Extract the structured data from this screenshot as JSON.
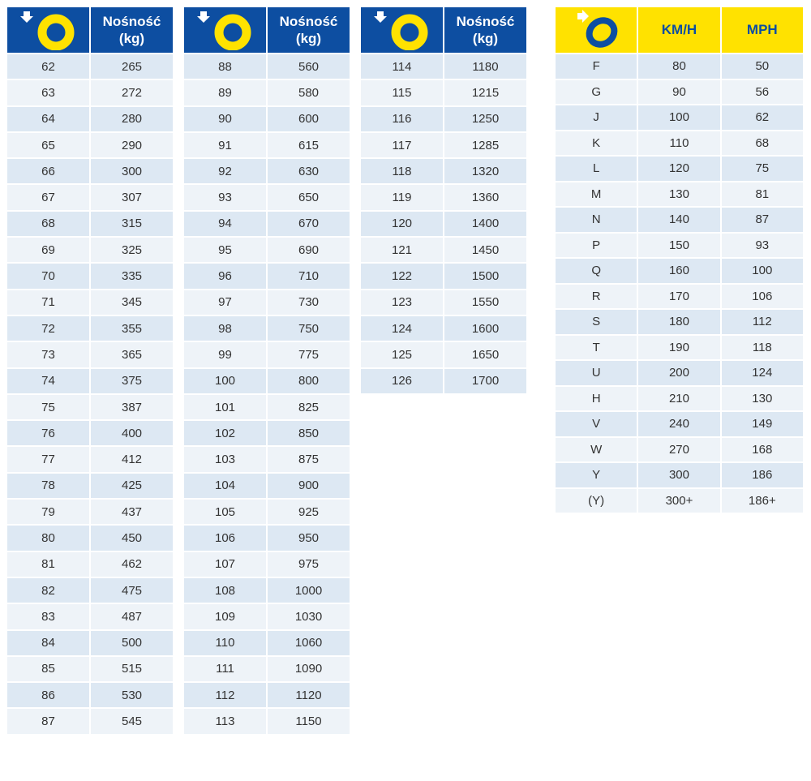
{
  "load_tables": [
    {
      "header": {
        "icon": "load-index-tyre-icon",
        "label_line1": "Nośność",
        "label_line2": "(kg)"
      },
      "rows": [
        [
          "62",
          "265"
        ],
        [
          "63",
          "272"
        ],
        [
          "64",
          "280"
        ],
        [
          "65",
          "290"
        ],
        [
          "66",
          "300"
        ],
        [
          "67",
          "307"
        ],
        [
          "68",
          "315"
        ],
        [
          "69",
          "325"
        ],
        [
          "70",
          "335"
        ],
        [
          "71",
          "345"
        ],
        [
          "72",
          "355"
        ],
        [
          "73",
          "365"
        ],
        [
          "74",
          "375"
        ],
        [
          "75",
          "387"
        ],
        [
          "76",
          "400"
        ],
        [
          "77",
          "412"
        ],
        [
          "78",
          "425"
        ],
        [
          "79",
          "437"
        ],
        [
          "80",
          "450"
        ],
        [
          "81",
          "462"
        ],
        [
          "82",
          "475"
        ],
        [
          "83",
          "487"
        ],
        [
          "84",
          "500"
        ],
        [
          "85",
          "515"
        ],
        [
          "86",
          "530"
        ],
        [
          "87",
          "545"
        ]
      ]
    },
    {
      "header": {
        "icon": "load-index-tyre-icon",
        "label_line1": "Nośność",
        "label_line2": "(kg)"
      },
      "rows": [
        [
          "88",
          "560"
        ],
        [
          "89",
          "580"
        ],
        [
          "90",
          "600"
        ],
        [
          "91",
          "615"
        ],
        [
          "92",
          "630"
        ],
        [
          "93",
          "650"
        ],
        [
          "94",
          "670"
        ],
        [
          "95",
          "690"
        ],
        [
          "96",
          "710"
        ],
        [
          "97",
          "730"
        ],
        [
          "98",
          "750"
        ],
        [
          "99",
          "775"
        ],
        [
          "100",
          "800"
        ],
        [
          "101",
          "825"
        ],
        [
          "102",
          "850"
        ],
        [
          "103",
          "875"
        ],
        [
          "104",
          "900"
        ],
        [
          "105",
          "925"
        ],
        [
          "106",
          "950"
        ],
        [
          "107",
          "975"
        ],
        [
          "108",
          "1000"
        ],
        [
          "109",
          "1030"
        ],
        [
          "110",
          "1060"
        ],
        [
          "111",
          "1090"
        ],
        [
          "112",
          "1120"
        ],
        [
          "113",
          "1150"
        ]
      ]
    },
    {
      "header": {
        "icon": "load-index-tyre-icon",
        "label_line1": "Nośność",
        "label_line2": "(kg)"
      },
      "rows": [
        [
          "114",
          "1180"
        ],
        [
          "115",
          "1215"
        ],
        [
          "116",
          "1250"
        ],
        [
          "117",
          "1285"
        ],
        [
          "118",
          "1320"
        ],
        [
          "119",
          "1360"
        ],
        [
          "120",
          "1400"
        ],
        [
          "121",
          "1450"
        ],
        [
          "122",
          "1500"
        ],
        [
          "123",
          "1550"
        ],
        [
          "124",
          "1600"
        ],
        [
          "125",
          "1650"
        ],
        [
          "126",
          "1700"
        ]
      ]
    }
  ],
  "speed_table": {
    "header": {
      "icon": "speed-index-tyre-icon",
      "col_kmh": "KM/H",
      "col_mph": "MPH"
    },
    "rows": [
      [
        "F",
        "80",
        "50"
      ],
      [
        "G",
        "90",
        "56"
      ],
      [
        "J",
        "100",
        "62"
      ],
      [
        "K",
        "110",
        "68"
      ],
      [
        "L",
        "120",
        "75"
      ],
      [
        "M",
        "130",
        "81"
      ],
      [
        "N",
        "140",
        "87"
      ],
      [
        "P",
        "150",
        "93"
      ],
      [
        "Q",
        "160",
        "100"
      ],
      [
        "R",
        "170",
        "106"
      ],
      [
        "S",
        "180",
        "112"
      ],
      [
        "T",
        "190",
        "118"
      ],
      [
        "U",
        "200",
        "124"
      ],
      [
        "H",
        "210",
        "130"
      ],
      [
        "V",
        "240",
        "149"
      ],
      [
        "W",
        "270",
        "168"
      ],
      [
        "Y",
        "300",
        "186"
      ],
      [
        "(Y)",
        "300+",
        "186+"
      ]
    ]
  },
  "colors": {
    "blue": "#0d4ea1",
    "yellow": "#ffe200",
    "row_dark": "#dde8f3",
    "row_light": "#eef3f8"
  }
}
